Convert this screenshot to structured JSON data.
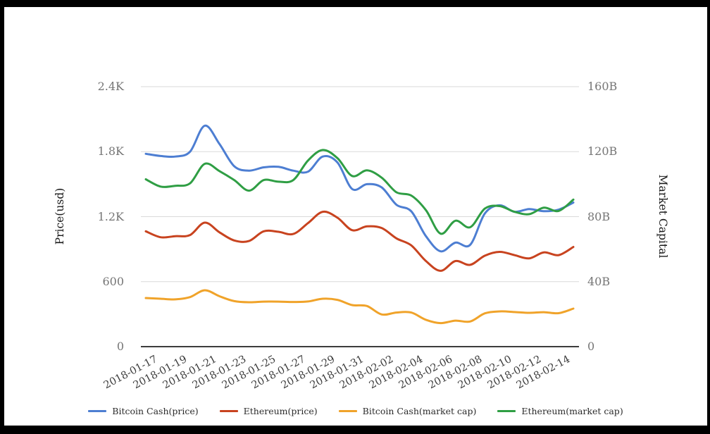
{
  "chart_data": {
    "type": "line",
    "title": "",
    "grid": true,
    "legend_position": "bottom",
    "x": [
      "2018-01-17",
      "2018-01-18",
      "2018-01-19",
      "2018-01-20",
      "2018-01-21",
      "2018-01-22",
      "2018-01-23",
      "2018-01-24",
      "2018-01-25",
      "2018-01-26",
      "2018-01-27",
      "2018-01-28",
      "2018-01-29",
      "2018-01-30",
      "2018-01-31",
      "2018-02-01",
      "2018-02-02",
      "2018-02-03",
      "2018-02-04",
      "2018-02-05",
      "2018-02-06",
      "2018-02-07",
      "2018-02-08",
      "2018-02-09",
      "2018-02-10",
      "2018-02-11",
      "2018-02-12",
      "2018-02-13",
      "2018-02-14",
      "2018-02-15"
    ],
    "x_tick_labels": [
      "2018-01-17",
      "2018-01-19",
      "2018-01-21",
      "2018-01-23",
      "2018-01-25",
      "2018-01-27",
      "2018-01-29",
      "2018-01-31",
      "2018-02-02",
      "2018-02-04",
      "2018-02-06",
      "2018-02-08",
      "2018-02-10",
      "2018-02-12",
      "2018-02-14"
    ],
    "axes": {
      "left": {
        "title": "Price(usd)",
        "ticks": [
          "0",
          "600",
          "1.2K",
          "1.8K",
          "2.4K"
        ],
        "tick_values": [
          0,
          600,
          1200,
          1800,
          2400
        ],
        "range": [
          0,
          2400
        ]
      },
      "right": {
        "title": "Market Capital",
        "ticks": [
          "0",
          "40B",
          "80B",
          "120B",
          "160B"
        ],
        "tick_values": [
          0,
          40,
          80,
          120,
          160
        ],
        "range": [
          0,
          160
        ]
      }
    },
    "series": [
      {
        "name": "Bitcoin Cash(price)",
        "axis": "left",
        "color": "#4d7ed2",
        "values": [
          1780,
          1760,
          1755,
          1800,
          2040,
          1870,
          1665,
          1625,
          1655,
          1660,
          1625,
          1615,
          1755,
          1700,
          1455,
          1500,
          1470,
          1310,
          1250,
          1020,
          880,
          960,
          940,
          1230,
          1305,
          1245,
          1270,
          1250,
          1265,
          1330
        ]
      },
      {
        "name": "Ethereum(price)",
        "axis": "left",
        "color": "#c8431f",
        "values": [
          1065,
          1010,
          1020,
          1030,
          1145,
          1055,
          980,
          975,
          1065,
          1060,
          1040,
          1140,
          1245,
          1190,
          1075,
          1110,
          1095,
          1000,
          935,
          790,
          700,
          790,
          755,
          840,
          875,
          845,
          815,
          870,
          845,
          920
        ]
      },
      {
        "name": "Bitcoin Cash(market cap)",
        "axis": "right",
        "color": "#f0a32a",
        "values": [
          29.9,
          29.5,
          29.1,
          30.5,
          34.7,
          31.0,
          28.0,
          27.3,
          27.7,
          27.7,
          27.5,
          27.8,
          29.5,
          28.8,
          25.6,
          25.0,
          19.8,
          21.0,
          21.0,
          16.5,
          14.5,
          16.0,
          15.5,
          20.5,
          21.7,
          21.3,
          20.8,
          21.2,
          20.6,
          23.4
        ]
      },
      {
        "name": "Ethereum(market cap)",
        "axis": "right",
        "color": "#2f9e44",
        "values": [
          103,
          98.5,
          99,
          100.5,
          112.5,
          108,
          102.5,
          96,
          102.5,
          101.5,
          102.5,
          114.5,
          121,
          116,
          105,
          108.5,
          104,
          95,
          93,
          84,
          69.5,
          77.5,
          73.5,
          85,
          86.5,
          83,
          81.5,
          85.5,
          83.5,
          90.5
        ]
      }
    ],
    "colors": {
      "grid_line": "#dadada",
      "axis_line": "#3c3c3c",
      "y_tick_text": "#757575",
      "x_tick_text": "#3b3b3b"
    }
  }
}
